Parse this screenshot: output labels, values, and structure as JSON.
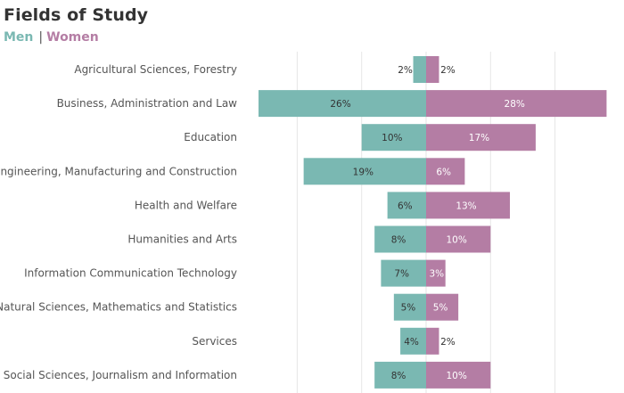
{
  "header": {
    "title": "Fields of Study",
    "legend_men": "Men",
    "legend_separator": "|",
    "legend_women": "Women"
  },
  "colors": {
    "men": "#7ab8b2",
    "women": "#b47da4",
    "grid": "#e6e6e6",
    "label": "#555555"
  },
  "chart_data": {
    "type": "bar",
    "orientation": "horizontal-diverging",
    "title": "Fields of Study",
    "xlabel": "",
    "ylabel": "",
    "grid": true,
    "legend": "top-left",
    "unit": "%",
    "xlim": [
      -26,
      28
    ],
    "categories": [
      "Agricultural Sciences, Forestry",
      "Business, Administration and Law",
      "Education",
      "Engineering, Manufacturing and Construction",
      "Health and Welfare",
      "Humanities and Arts",
      "Information Communication Technology",
      "Natural Sciences, Mathematics and Statistics",
      "Services",
      "Social Sciences, Journalism and Information"
    ],
    "series": [
      {
        "name": "Men",
        "values": [
          2,
          26,
          10,
          19,
          6,
          8,
          7,
          5,
          4,
          8
        ]
      },
      {
        "name": "Women",
        "values": [
          2,
          28,
          17,
          6,
          13,
          10,
          3,
          5,
          2,
          10
        ]
      }
    ]
  }
}
